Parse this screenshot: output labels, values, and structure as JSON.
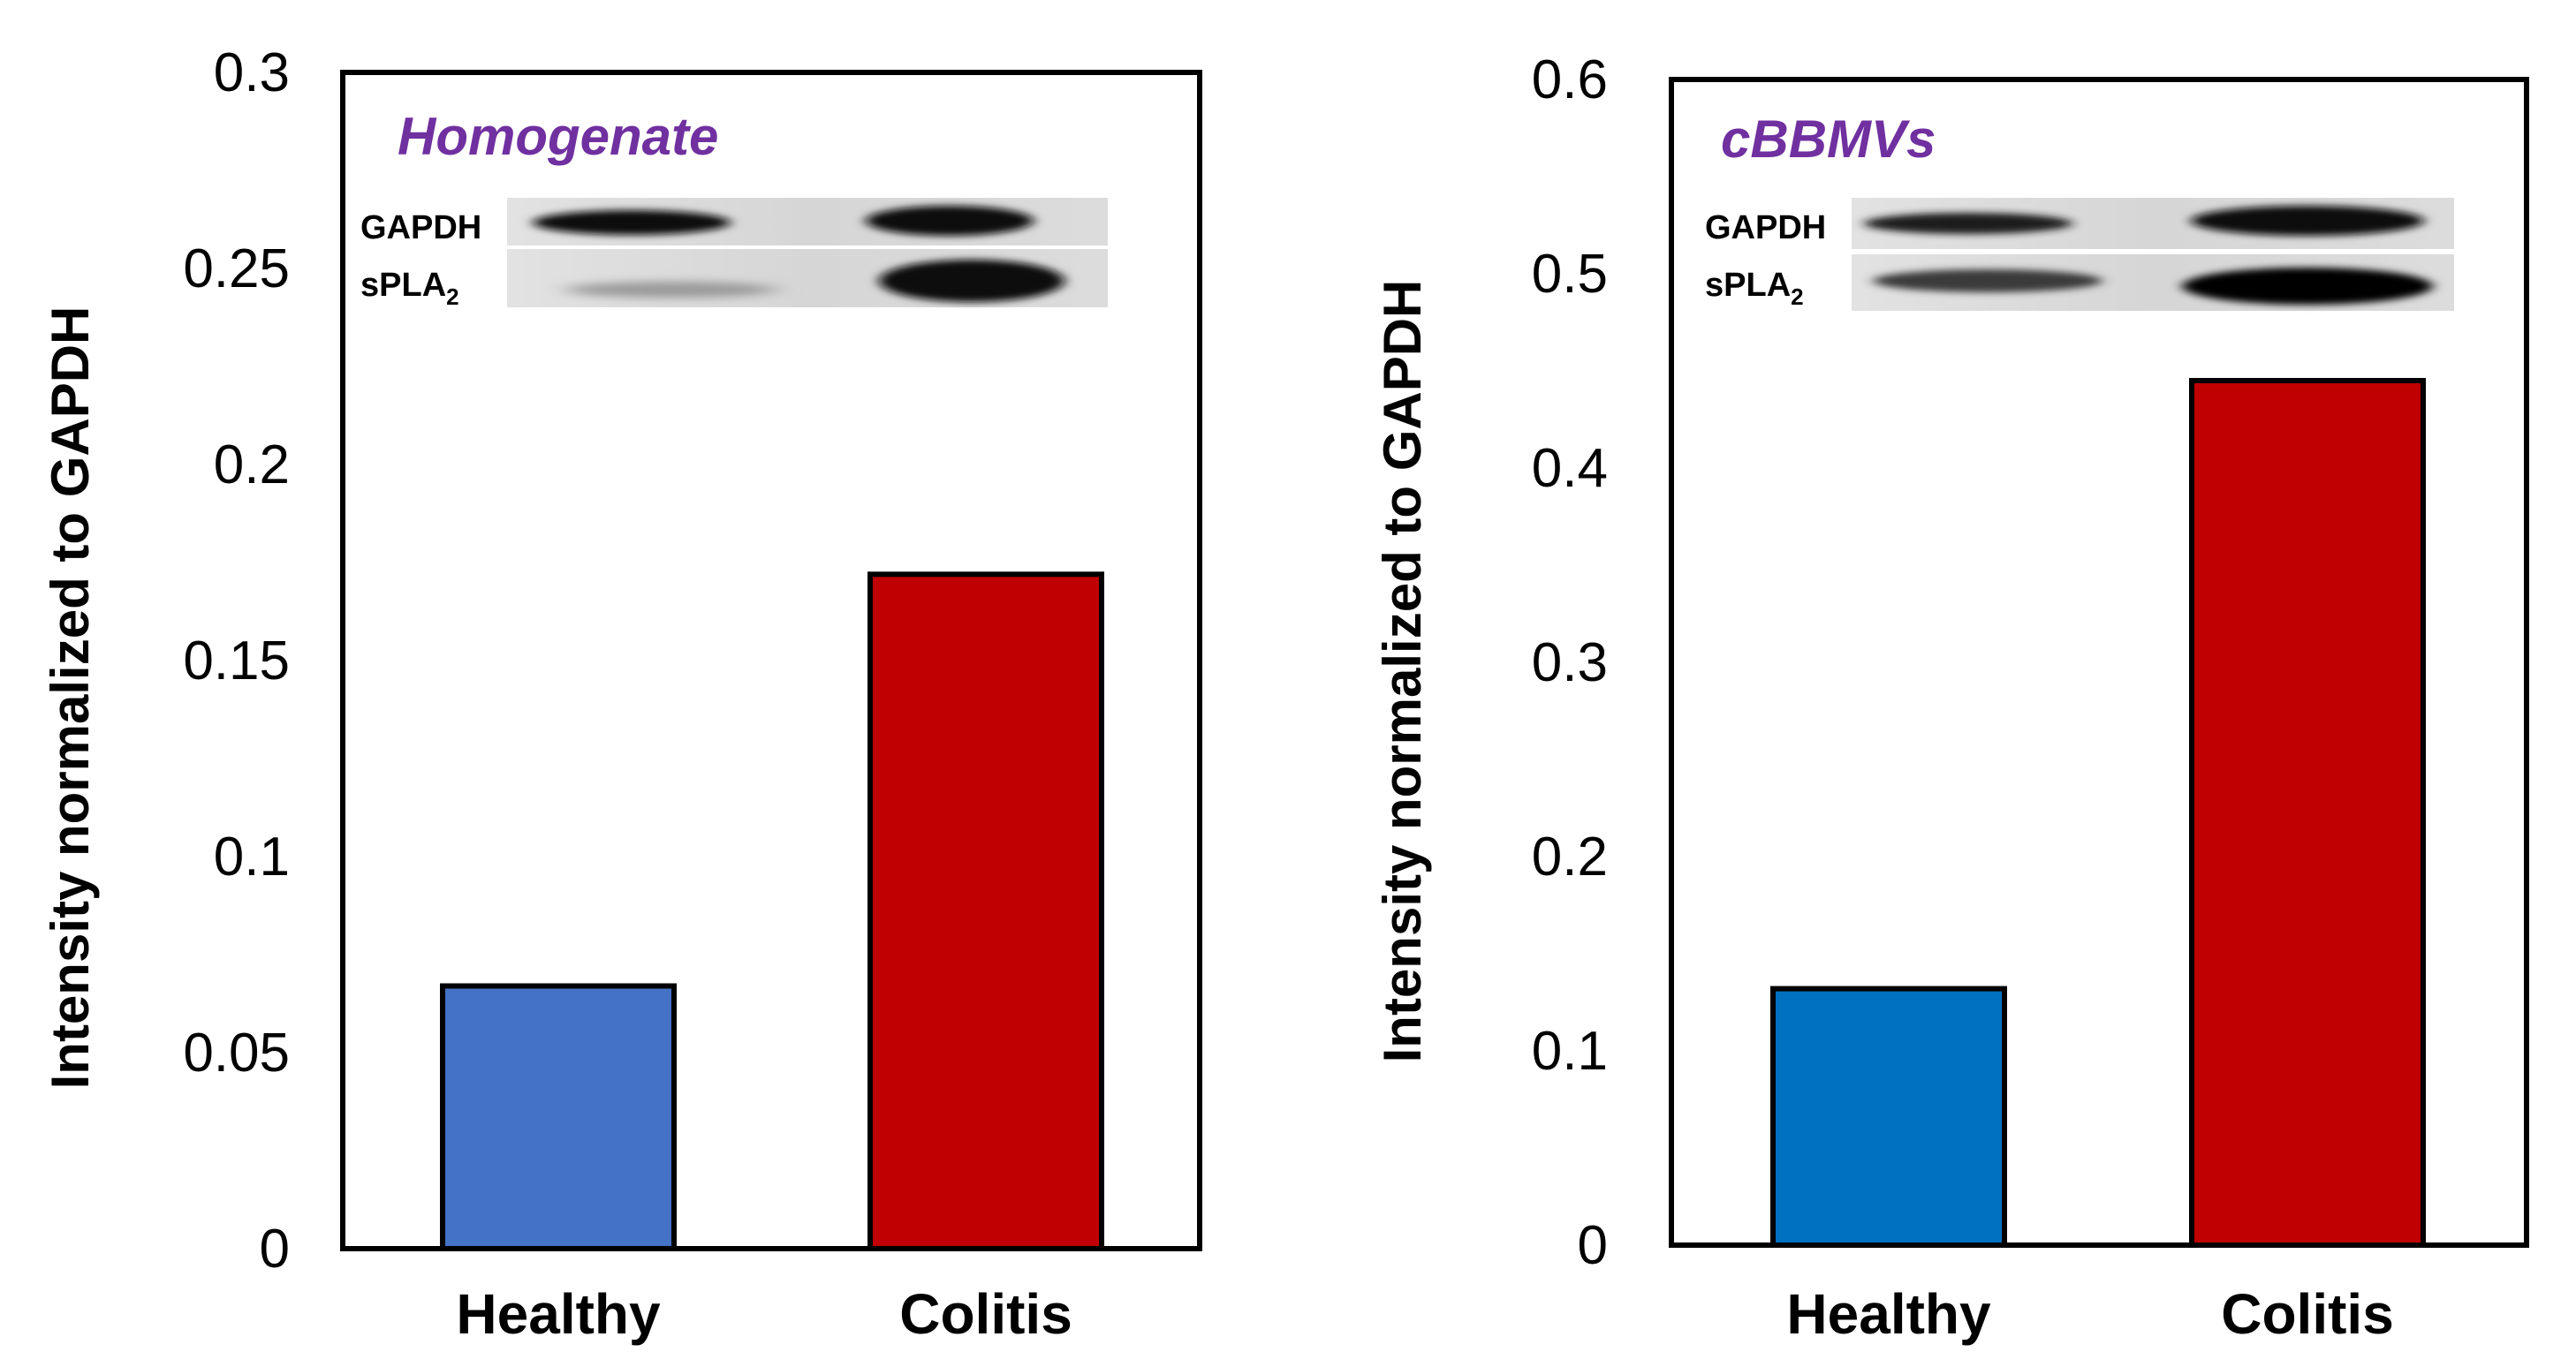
{
  "colors": {
    "healthy_left": "#4472C4",
    "healthy_right": "#0070C0",
    "colitis": "#C00000",
    "title": "#7030A0",
    "frame": "#000000"
  },
  "blot": {
    "gapdh_label": "GAPDH",
    "spla2_label_main": "sPLA",
    "spla2_label_sub": "2"
  },
  "chart_data": [
    {
      "type": "bar",
      "title": "Homogenate",
      "ylabel": "Intensity normalized to GAPDH",
      "xlabel": "",
      "categories": [
        "Healthy",
        "Colitis"
      ],
      "values": [
        0.067,
        0.172
      ],
      "ylim": [
        0,
        0.3
      ],
      "yticks": [
        0,
        0.05,
        0.1,
        0.15,
        0.2,
        0.25,
        0.3
      ],
      "ytick_labels": [
        "0",
        "0.05",
        "0.1",
        "0.15",
        "0.2",
        "0.25",
        "0.3"
      ],
      "grid": false,
      "legend": "none"
    },
    {
      "type": "bar",
      "title": "cBBMVs",
      "ylabel": "Intensity normalized to GAPDH",
      "xlabel": "",
      "categories": [
        "Healthy",
        "Colitis"
      ],
      "values": [
        0.132,
        0.445
      ],
      "ylim": [
        0,
        0.6
      ],
      "yticks": [
        0,
        0.1,
        0.2,
        0.3,
        0.4,
        0.5,
        0.6
      ],
      "ytick_labels": [
        "0",
        "0.1",
        "0.2",
        "0.3",
        "0.4",
        "0.5",
        "0.6"
      ],
      "grid": false,
      "legend": "none"
    }
  ]
}
